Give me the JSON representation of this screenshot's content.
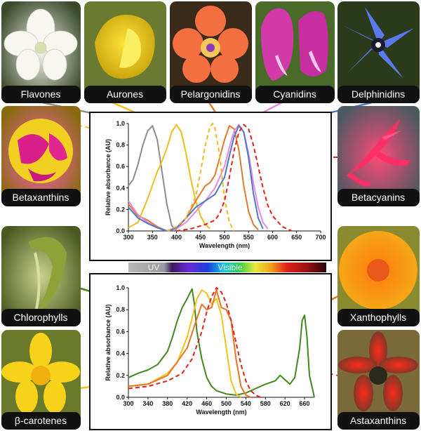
{
  "pigments_top": [
    "Flavones",
    "Aurones",
    "Pelargonidins",
    "Cyanidins",
    "Delphinidins"
  ],
  "pigments_left": [
    "Betaxanthins"
  ],
  "pigments_right": [
    "Betacyanins"
  ],
  "pigments_bottom_left": [
    "Chlorophylls",
    "β-carotenes"
  ],
  "pigments_bottom_right": [
    "Xanthophylls",
    "Astaxanthins"
  ],
  "spectrum_bar": {
    "uv_label": "UV",
    "visible_label": "Visible"
  },
  "colors": {
    "flavones": "#8c8c8c",
    "aurones": "#f1bd1b",
    "pelargonidins": "#e07b2a",
    "cyanidins": "#e58ae0",
    "delphinidins": "#4a78c8",
    "betaxanthins": "#f2b81e",
    "betacyanins": "#e3201b",
    "chlorophylls": "#3e8a1a",
    "betacarotenes": "#f3c21d",
    "xanthophylls": "#e8761f",
    "astaxanthins": "#e3201b"
  },
  "chart_data": [
    {
      "type": "line",
      "ylabel": "Relative absorbance (AU)",
      "xlabel": "Wavelength (nm)",
      "xlim": [
        300,
        700
      ],
      "ylim": [
        0,
        1
      ],
      "xticks": [
        "300",
        "350",
        "400",
        "450",
        "500",
        "550",
        "600",
        "650",
        "700"
      ],
      "yticks": [
        "0.0",
        "0.2",
        "0.4",
        "0.6",
        "0.8",
        "1.0"
      ],
      "series": [
        {
          "name": "Flavones",
          "x": [
            300,
            310,
            320,
            330,
            340,
            350,
            360,
            370,
            380,
            390,
            400
          ],
          "y": [
            0.42,
            0.48,
            0.62,
            0.8,
            0.93,
            0.98,
            0.85,
            0.55,
            0.25,
            0.05,
            0.0
          ]
        },
        {
          "name": "Aurones",
          "x": [
            300,
            320,
            340,
            360,
            370,
            380,
            390,
            400,
            410,
            420,
            430,
            440,
            450,
            460,
            470
          ],
          "y": [
            0.03,
            0.08,
            0.3,
            0.55,
            0.65,
            0.77,
            0.92,
            0.99,
            0.92,
            0.72,
            0.48,
            0.28,
            0.14,
            0.06,
            0.02
          ]
        },
        {
          "name": "Pelargonidins",
          "x": [
            300,
            320,
            340,
            360,
            380,
            400,
            420,
            440,
            460,
            470,
            480,
            490,
            500,
            510,
            520,
            530,
            540,
            550,
            560,
            570
          ],
          "y": [
            0.25,
            0.14,
            0.1,
            0.04,
            0.0,
            0.02,
            0.12,
            0.28,
            0.42,
            0.45,
            0.52,
            0.68,
            0.85,
            0.98,
            0.95,
            0.75,
            0.42,
            0.18,
            0.06,
            0.01
          ]
        },
        {
          "name": "Cyanidins",
          "x": [
            300,
            320,
            340,
            360,
            380,
            400,
            420,
            440,
            460,
            480,
            500,
            510,
            520,
            530,
            540,
            550,
            560,
            570,
            580,
            590
          ],
          "y": [
            0.28,
            0.15,
            0.08,
            0.03,
            0.0,
            0.02,
            0.08,
            0.18,
            0.28,
            0.4,
            0.6,
            0.78,
            0.93,
            0.99,
            0.92,
            0.72,
            0.45,
            0.22,
            0.08,
            0.02
          ]
        },
        {
          "name": "Delphinidins",
          "x": [
            300,
            320,
            340,
            360,
            380,
            400,
            420,
            440,
            460,
            480,
            500,
            510,
            520,
            530,
            540,
            550,
            560,
            570,
            580
          ],
          "y": [
            0.22,
            0.12,
            0.07,
            0.03,
            0.0,
            0.03,
            0.12,
            0.22,
            0.28,
            0.34,
            0.5,
            0.7,
            0.88,
            0.98,
            0.92,
            0.68,
            0.35,
            0.12,
            0.02
          ]
        },
        {
          "name": "Betaxanthins",
          "x": [
            380,
            400,
            420,
            440,
            450,
            460,
            470,
            475,
            480,
            490,
            500,
            510,
            520
          ],
          "y": [
            0.0,
            0.04,
            0.12,
            0.32,
            0.55,
            0.8,
            0.97,
            1.0,
            0.96,
            0.7,
            0.3,
            0.08,
            0.0
          ]
        },
        {
          "name": "Betacyanins",
          "x": [
            400,
            430,
            460,
            480,
            490,
            500,
            510,
            520,
            530,
            540,
            550,
            560,
            570,
            580,
            590,
            600,
            620,
            640
          ],
          "y": [
            0.0,
            0.02,
            0.06,
            0.1,
            0.16,
            0.28,
            0.5,
            0.75,
            0.92,
            0.99,
            0.95,
            0.8,
            0.6,
            0.4,
            0.24,
            0.14,
            0.04,
            0.0
          ]
        }
      ]
    },
    {
      "type": "line",
      "ylabel": "Relative absorbance (AU)",
      "xlabel": "Wavelength (nm)",
      "xlim": [
        300,
        680
      ],
      "ylim": [
        0,
        1
      ],
      "xticks": [
        "300",
        "340",
        "380",
        "420",
        "460",
        "500",
        "540",
        "580",
        "620",
        "660"
      ],
      "yticks": [
        "0.0",
        "0.2",
        "0.4",
        "0.6",
        "0.8",
        "1.0"
      ],
      "series": [
        {
          "name": "Chlorophylls",
          "x": [
            300,
            320,
            340,
            360,
            380,
            390,
            400,
            410,
            420,
            430,
            435,
            440,
            450,
            460,
            470,
            480,
            500,
            520,
            540,
            560,
            580,
            600,
            610,
            620,
            630,
            640,
            650,
            655,
            660,
            665,
            670,
            680
          ],
          "y": [
            0.18,
            0.22,
            0.25,
            0.3,
            0.42,
            0.55,
            0.7,
            0.82,
            0.9,
            0.99,
            0.85,
            0.6,
            0.35,
            0.18,
            0.1,
            0.06,
            0.03,
            0.02,
            0.04,
            0.08,
            0.12,
            0.15,
            0.2,
            0.16,
            0.12,
            0.18,
            0.45,
            0.7,
            0.75,
            0.55,
            0.2,
            0.0
          ]
        },
        {
          "name": "β-carotenes",
          "x": [
            300,
            340,
            380,
            400,
            420,
            430,
            440,
            450,
            460,
            470,
            480,
            490,
            500,
            510,
            520,
            530
          ],
          "y": [
            0.1,
            0.12,
            0.22,
            0.32,
            0.55,
            0.72,
            0.9,
            0.98,
            0.95,
            0.85,
            0.9,
            0.75,
            0.45,
            0.15,
            0.03,
            0.0
          ]
        },
        {
          "name": "Xanthophylls",
          "x": [
            300,
            340,
            380,
            420,
            440,
            450,
            460,
            470,
            480,
            490,
            500,
            510,
            520,
            530,
            540,
            550
          ],
          "y": [
            0.1,
            0.12,
            0.2,
            0.45,
            0.72,
            0.85,
            0.8,
            0.82,
            0.98,
            0.82,
            0.8,
            0.7,
            0.35,
            0.1,
            0.02,
            0.0
          ]
        },
        {
          "name": "Astaxanthins",
          "x": [
            300,
            340,
            380,
            410,
            430,
            450,
            460,
            470,
            480,
            490,
            500,
            510,
            520,
            530,
            540,
            550,
            560,
            570
          ],
          "y": [
            0.08,
            0.1,
            0.15,
            0.22,
            0.35,
            0.6,
            0.78,
            0.92,
            1.0,
            0.96,
            0.86,
            0.7,
            0.5,
            0.3,
            0.15,
            0.06,
            0.02,
            0.0
          ]
        }
      ]
    }
  ]
}
